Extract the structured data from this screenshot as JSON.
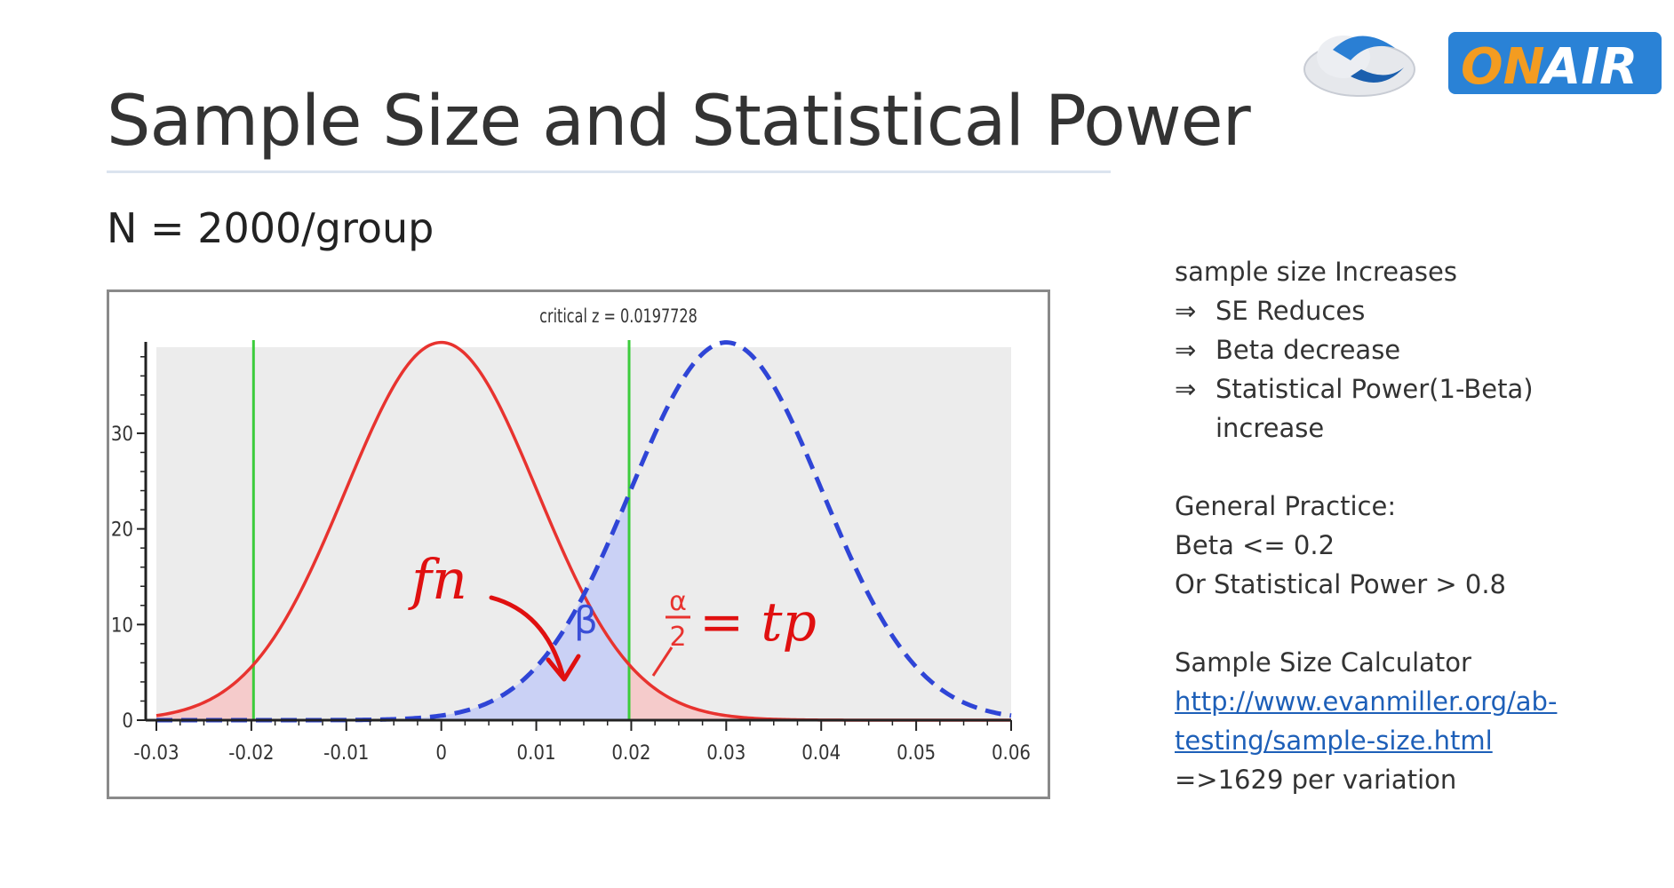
{
  "logo": {
    "text_on": "ON",
    "text_air": "AIR",
    "icon": "cloud-swirl-icon"
  },
  "slide": {
    "title": "Sample Size and Statistical Power",
    "subtitle": "N = 2000/group"
  },
  "notes": {
    "l1": "sample size Increases",
    "arrow": "⇒",
    "l2": "SE Reduces",
    "l3": "Beta decrease",
    "l4": "Statistical Power(1-Beta)",
    "l5": "increase",
    "l6": "General Practice:",
    "l7": "Beta <= 0.2",
    "l8": "Or Statistical Power > 0.8",
    "l9": "Sample Size Calculator",
    "link1": "http://www.evanmiller.org/ab-",
    "link2": "testing/sample-size.html",
    "l10": "=>1629  per variation"
  },
  "annotations": {
    "fn": "fn",
    "beta": "β",
    "alpha": "α",
    "two": "2",
    "tp": "= tp"
  },
  "chart_data": {
    "type": "line",
    "title": "critical z =  0.0197728",
    "xlim": [
      -0.03,
      0.06
    ],
    "ylim": [
      0,
      39
    ],
    "x_ticks": [
      -0.03,
      -0.02,
      -0.01,
      0,
      0.01,
      0.02,
      0.03,
      0.04,
      0.05,
      0.06
    ],
    "x_tick_labels": [
      "-0.03",
      "-0.02",
      "-0.01",
      "0",
      "0.01",
      "0.02",
      "0.03",
      "0.04",
      "0.05",
      "0.06"
    ],
    "y_ticks": [
      0,
      10,
      20,
      30
    ],
    "y_tick_labels": [
      "0",
      "10",
      "20",
      "30"
    ],
    "critical_values": [
      -0.0197728,
      0.0197728
    ],
    "series": [
      {
        "mean": 0,
        "sd": 0.0101,
        "style": "solid",
        "color": "#e8332f"
      },
      {
        "mean": 0.03,
        "sd": 0.0101,
        "style": "dashed",
        "color": "#2f45d6"
      }
    ],
    "shaded_regions": [
      {
        "from": -0.03,
        "to": -0.0197728,
        "under": 0,
        "color": "#f7c6c6"
      },
      {
        "from": 0.0197728,
        "to": 0.06,
        "under": 0,
        "color": "#f7c6c6"
      },
      {
        "from": -0.03,
        "to": 0.0197728,
        "under": 1,
        "color": "#c4cdf7"
      }
    ],
    "critical_line_color": "#3ccc3c",
    "grid": false
  }
}
